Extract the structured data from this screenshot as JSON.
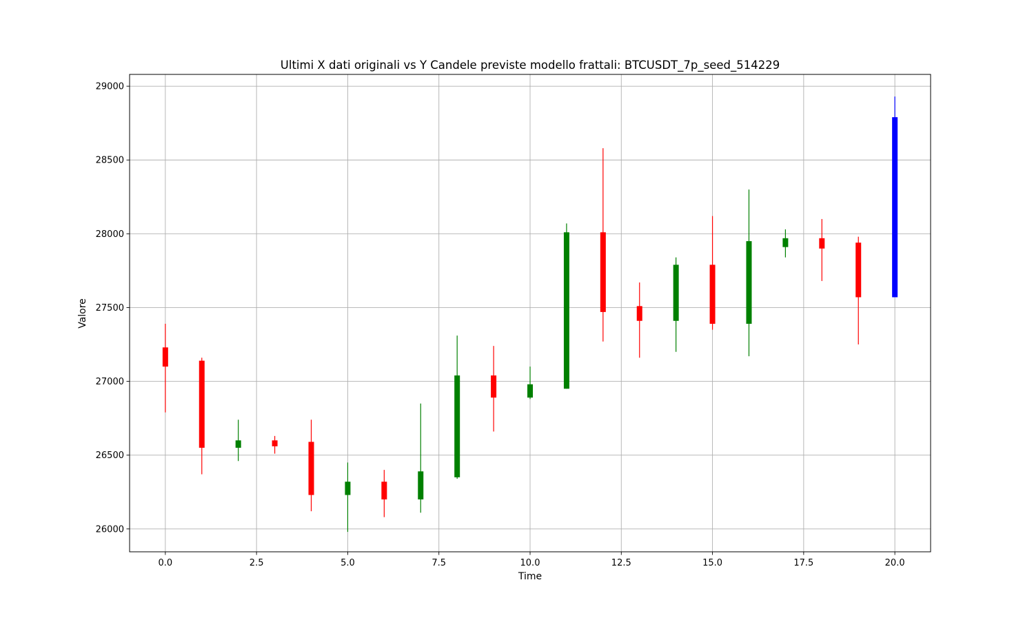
{
  "chart_data": {
    "type": "candlestick",
    "title": "Ultimi X dati originali vs Y Candele previste modello frattali: BTCUSDT_7p_seed_514229",
    "xlabel": "Time",
    "ylabel": "Valore",
    "xlim": [
      -0.98,
      20.98
    ],
    "ylim": [
      25845,
      29080
    ],
    "xticks": [
      0,
      2.5,
      5,
      7.5,
      10,
      12.5,
      15,
      17.5,
      20
    ],
    "xtick_labels": [
      "0.0",
      "2.5",
      "5.0",
      "7.5",
      "10.0",
      "12.5",
      "15.0",
      "17.5",
      "20.0"
    ],
    "yticks": [
      26000,
      26500,
      27000,
      27500,
      28000,
      28500,
      29000
    ],
    "ytick_labels": [
      "26000",
      "26500",
      "27000",
      "27500",
      "28000",
      "28500",
      "29000"
    ],
    "grid": true,
    "colors": {
      "up": "#008000",
      "down": "#ff0000",
      "forecast": "#0000ff"
    },
    "candles": [
      {
        "t": 0,
        "open": 27230,
        "close": 27100,
        "high": 27390,
        "low": 26790,
        "kind": "down"
      },
      {
        "t": 1,
        "open": 27140,
        "close": 26550,
        "high": 27160,
        "low": 26370,
        "kind": "down"
      },
      {
        "t": 2,
        "open": 26550,
        "close": 26600,
        "high": 26740,
        "low": 26460,
        "kind": "up"
      },
      {
        "t": 3,
        "open": 26600,
        "close": 26560,
        "high": 26630,
        "low": 26510,
        "kind": "down"
      },
      {
        "t": 4,
        "open": 26590,
        "close": 26230,
        "high": 26740,
        "low": 26120,
        "kind": "down"
      },
      {
        "t": 5,
        "open": 26230,
        "close": 26320,
        "high": 26450,
        "low": 25980,
        "kind": "up"
      },
      {
        "t": 6,
        "open": 26320,
        "close": 26200,
        "high": 26400,
        "low": 26080,
        "kind": "down"
      },
      {
        "t": 7,
        "open": 26200,
        "close": 26390,
        "high": 26850,
        "low": 26110,
        "kind": "up"
      },
      {
        "t": 8,
        "open": 26350,
        "close": 27040,
        "high": 27310,
        "low": 26340,
        "kind": "up"
      },
      {
        "t": 9,
        "open": 27040,
        "close": 26890,
        "high": 27240,
        "low": 26660,
        "kind": "down"
      },
      {
        "t": 10,
        "open": 26890,
        "close": 26980,
        "high": 27100,
        "low": 26880,
        "kind": "up"
      },
      {
        "t": 11,
        "open": 26950,
        "close": 28010,
        "high": 28070,
        "low": 26950,
        "kind": "up"
      },
      {
        "t": 12,
        "open": 28010,
        "close": 27470,
        "high": 28580,
        "low": 27270,
        "kind": "down"
      },
      {
        "t": 13,
        "open": 27510,
        "close": 27410,
        "high": 27670,
        "low": 27160,
        "kind": "down"
      },
      {
        "t": 14,
        "open": 27410,
        "close": 27790,
        "high": 27840,
        "low": 27200,
        "kind": "up"
      },
      {
        "t": 15,
        "open": 27790,
        "close": 27390,
        "high": 28120,
        "low": 27350,
        "kind": "down"
      },
      {
        "t": 16,
        "open": 27390,
        "close": 27950,
        "high": 28300,
        "low": 27170,
        "kind": "up"
      },
      {
        "t": 17,
        "open": 27910,
        "close": 27970,
        "high": 28030,
        "low": 27840,
        "kind": "up"
      },
      {
        "t": 18,
        "open": 27970,
        "close": 27900,
        "high": 28100,
        "low": 27680,
        "kind": "down"
      },
      {
        "t": 19,
        "open": 27940,
        "close": 27570,
        "high": 27980,
        "low": 27250,
        "kind": "down"
      },
      {
        "t": 20,
        "open": 27570,
        "close": 28790,
        "high": 28930,
        "low": 27570,
        "kind": "forecast"
      }
    ]
  }
}
